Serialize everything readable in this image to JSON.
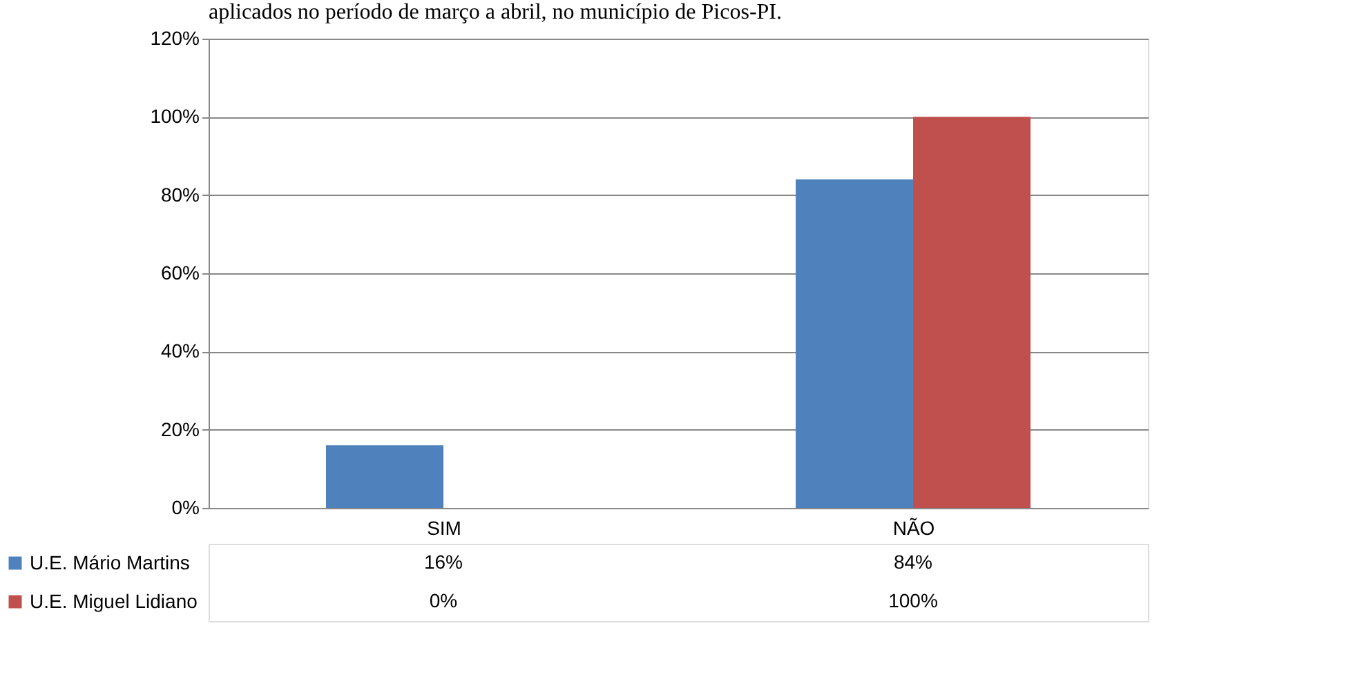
{
  "chart_data": {
    "type": "bar",
    "title": "aplicados no período de março a abril, no município de Picos-PI.",
    "categories": [
      "SIM",
      "NÃO"
    ],
    "series": [
      {
        "name": "U.E. Mário Martins",
        "color": "#4f81bd",
        "values": [
          16,
          84
        ],
        "value_labels": [
          "16%",
          "84%"
        ]
      },
      {
        "name": "U.E. Miguel Lidiano",
        "color": "#c0504d",
        "values": [
          0,
          100
        ],
        "value_labels": [
          "0%",
          "100%"
        ]
      }
    ],
    "ylim": [
      0,
      120
    ],
    "yticks": [
      {
        "value": 0,
        "label": "0%"
      },
      {
        "value": 20,
        "label": "20%"
      },
      {
        "value": 40,
        "label": "40%"
      },
      {
        "value": 60,
        "label": "60%"
      },
      {
        "value": 80,
        "label": "80%"
      },
      {
        "value": 100,
        "label": "100%"
      },
      {
        "value": 120,
        "label": "120%"
      }
    ],
    "grid": "y",
    "legend": "bottom left"
  }
}
